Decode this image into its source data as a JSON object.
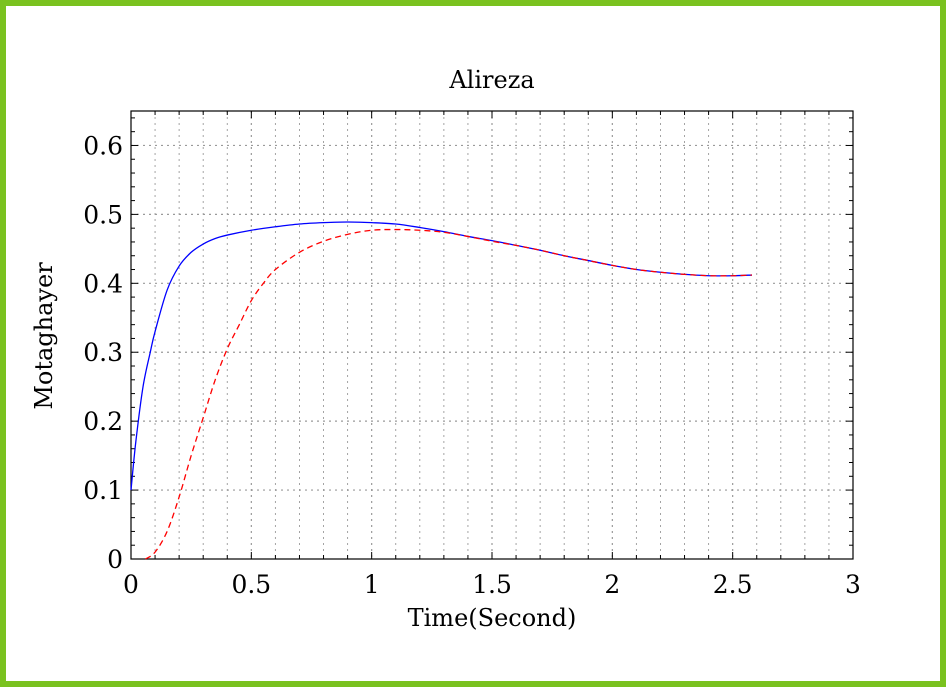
{
  "colors": {
    "frame": "#7ac21f",
    "grid": "#9a9a9a"
  },
  "chart_data": {
    "type": "line",
    "title": "Alireza",
    "xlabel": "Time(Second)",
    "ylabel": "Motaghayer",
    "xlim": [
      0,
      3
    ],
    "ylim": [
      0,
      0.65
    ],
    "xticks": [
      0,
      0.5,
      1,
      1.5,
      2,
      2.5,
      3
    ],
    "xtick_labels": [
      "0",
      "0.5",
      "1",
      "1.5",
      "2",
      "2.5",
      "3"
    ],
    "yticks": [
      0,
      0.1,
      0.2,
      0.3,
      0.4,
      0.5,
      0.6
    ],
    "ytick_labels": [
      "0",
      "0.1",
      "0.2",
      "0.3",
      "0.4",
      "0.5",
      "0.6"
    ],
    "grid": true,
    "minor_grid": true,
    "series": [
      {
        "color": "#0000ff",
        "style": "solid",
        "x": [
          0,
          0.02,
          0.05,
          0.08,
          0.1,
          0.15,
          0.2,
          0.25,
          0.3,
          0.35,
          0.4,
          0.5,
          0.6,
          0.7,
          0.8,
          0.9,
          1.0,
          1.1,
          1.2,
          1.3,
          1.4,
          1.5,
          1.6,
          1.7,
          1.8,
          1.9,
          2.0,
          2.1,
          2.2,
          2.3,
          2.4,
          2.5,
          2.58
        ],
        "y": [
          0.1,
          0.17,
          0.25,
          0.3,
          0.33,
          0.39,
          0.425,
          0.445,
          0.457,
          0.465,
          0.47,
          0.477,
          0.482,
          0.486,
          0.488,
          0.489,
          0.488,
          0.486,
          0.481,
          0.475,
          0.468,
          0.462,
          0.455,
          0.448,
          0.44,
          0.433,
          0.426,
          0.42,
          0.416,
          0.413,
          0.411,
          0.411,
          0.412
        ]
      },
      {
        "color": "#ff0000",
        "style": "dashed",
        "x": [
          0.06,
          0.1,
          0.15,
          0.2,
          0.25,
          0.3,
          0.35,
          0.4,
          0.45,
          0.5,
          0.55,
          0.6,
          0.7,
          0.8,
          0.9,
          1.0,
          1.1,
          1.2,
          1.3,
          1.4,
          1.5,
          1.6,
          1.7,
          1.8,
          1.9,
          2.0,
          2.1,
          2.2,
          2.3,
          2.4,
          2.5,
          2.58
        ],
        "y": [
          0.0,
          0.01,
          0.04,
          0.09,
          0.15,
          0.205,
          0.26,
          0.305,
          0.34,
          0.375,
          0.4,
          0.42,
          0.445,
          0.461,
          0.471,
          0.477,
          0.478,
          0.477,
          0.474,
          0.468,
          0.461,
          0.455,
          0.448,
          0.44,
          0.433,
          0.426,
          0.42,
          0.416,
          0.413,
          0.411,
          0.411,
          0.412
        ]
      }
    ]
  }
}
